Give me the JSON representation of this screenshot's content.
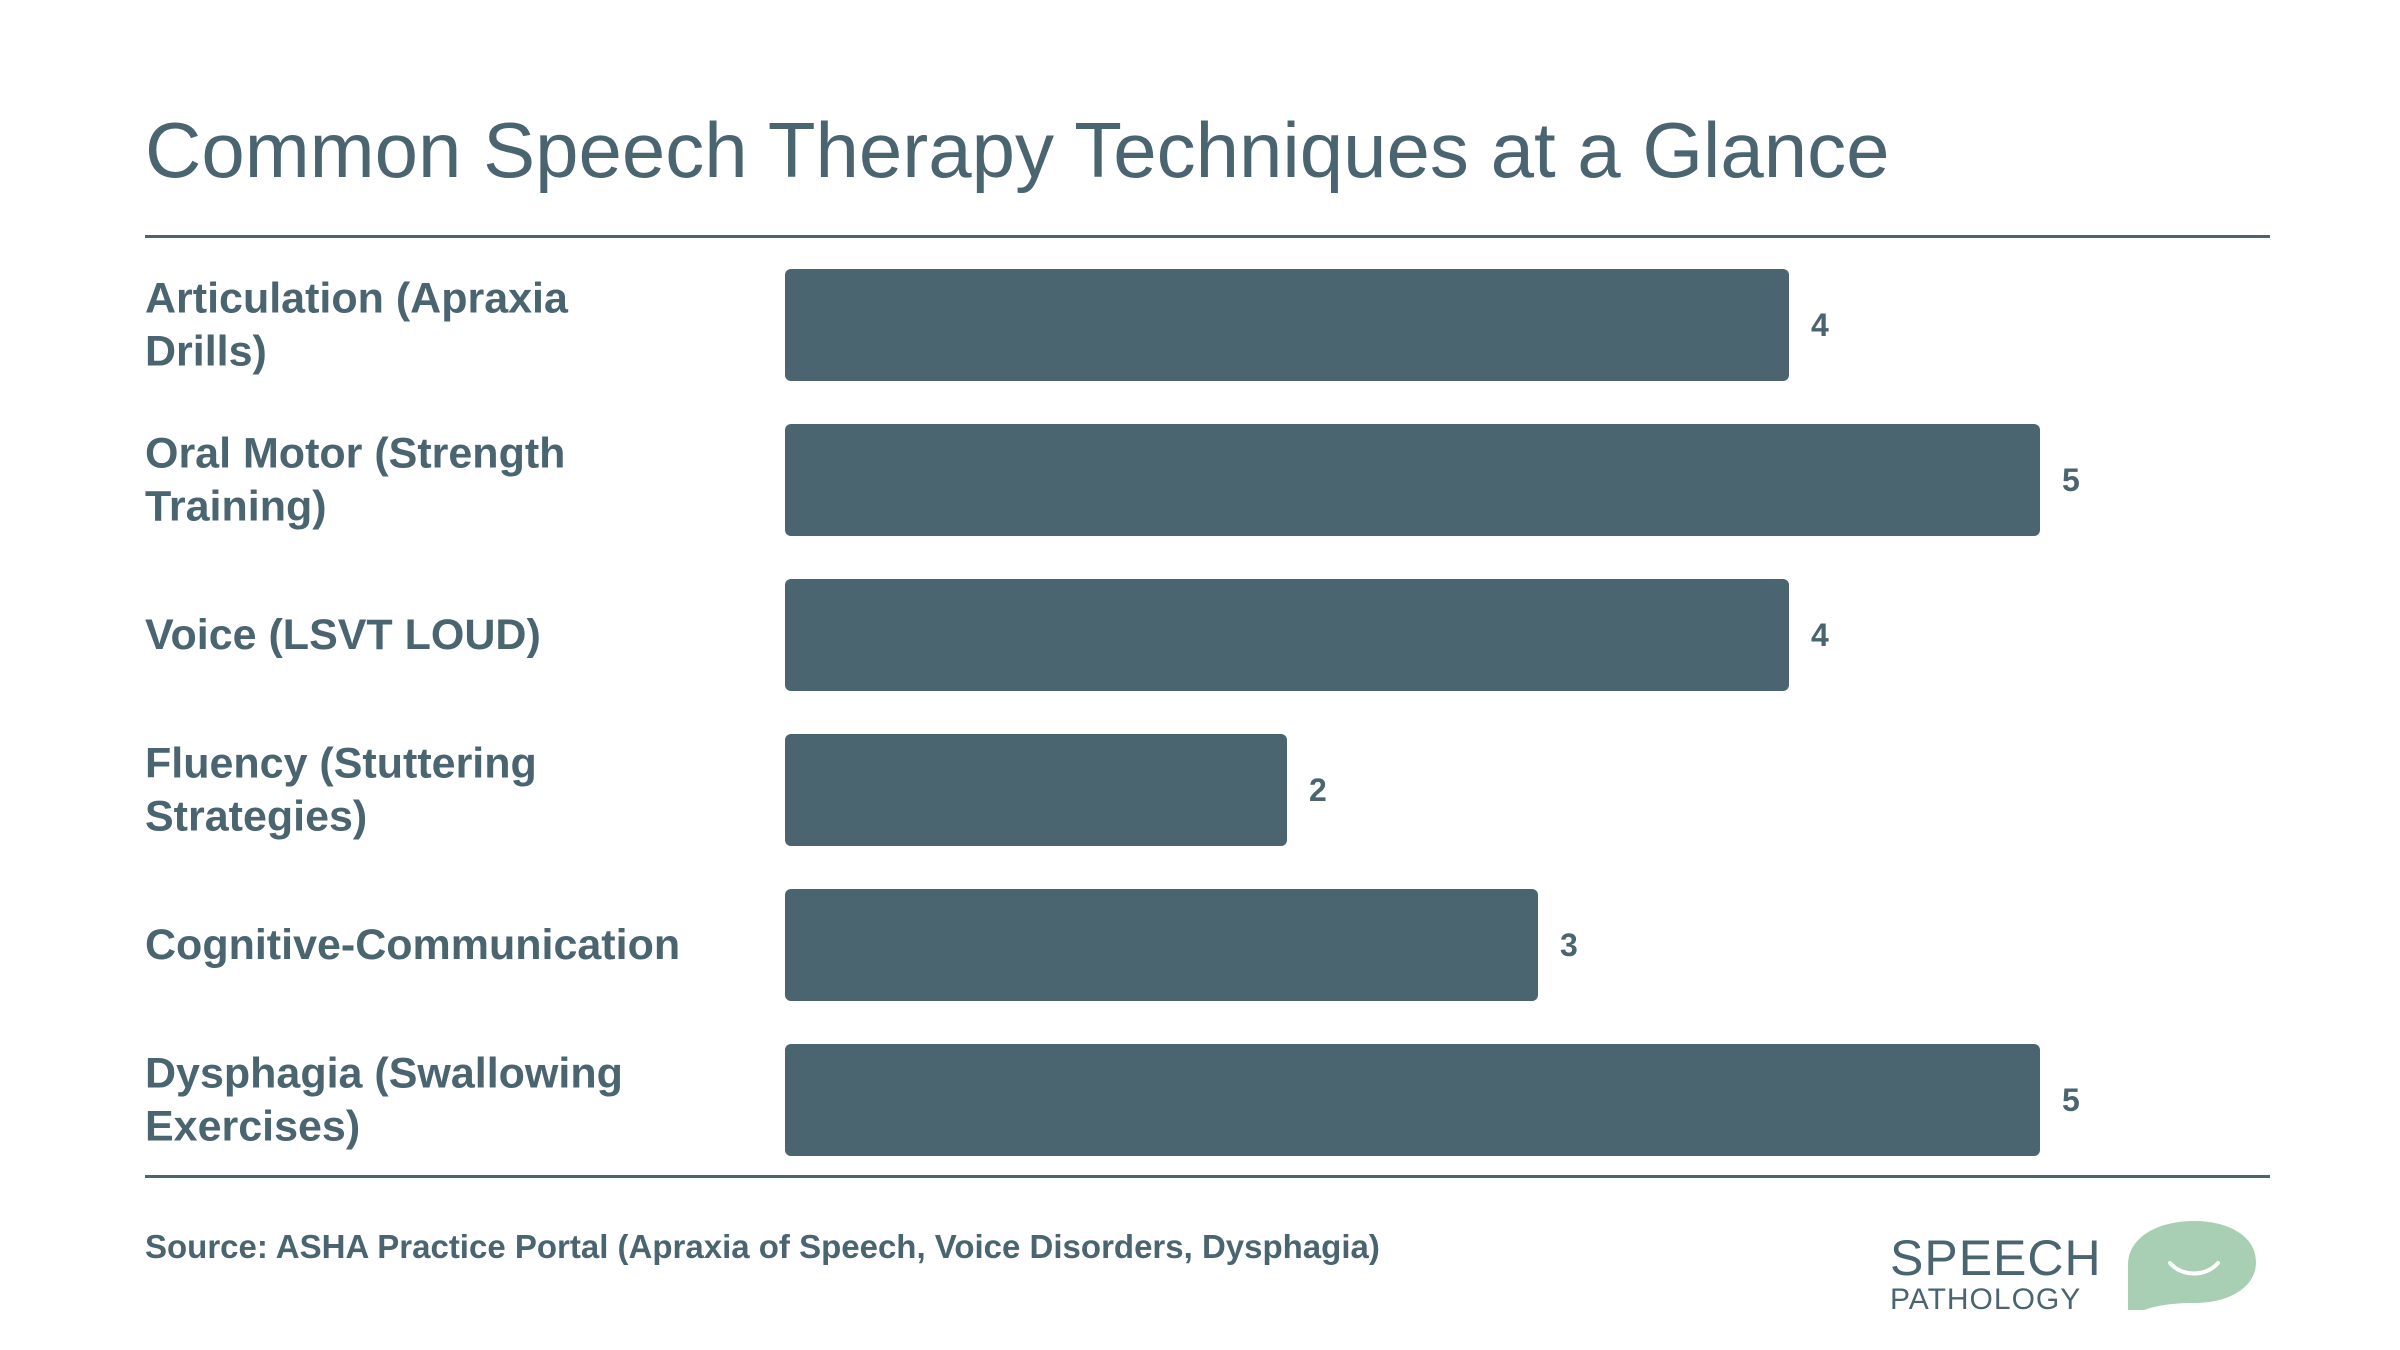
{
  "title": "Common Speech Therapy Techniques at a Glance",
  "source": "Source: ASHA Practice Portal (Apraxia of Speech, Voice Disorders, Dysphagia)",
  "logo": {
    "line1": "SPEECH",
    "line2": "PATHOLOGY"
  },
  "colors": {
    "bar": "#4a6470",
    "text": "#4a6470",
    "logo_accent": "#a8cfb4"
  },
  "chart_data": {
    "type": "bar",
    "orientation": "horizontal",
    "categories": [
      [
        "Articulation (Apraxia",
        "Drills)"
      ],
      [
        "Oral Motor (Strength",
        "Training)"
      ],
      [
        "Voice (LSVT LOUD)"
      ],
      [
        "Fluency (Stuttering",
        "Strategies)"
      ],
      [
        "Cognitive-Communication"
      ],
      [
        "Dysphagia (Swallowing",
        "Exercises)"
      ]
    ],
    "values": [
      4,
      5,
      4,
      2,
      3,
      5
    ],
    "xlim": [
      0,
      5
    ],
    "grid": false,
    "data_labels": true
  }
}
